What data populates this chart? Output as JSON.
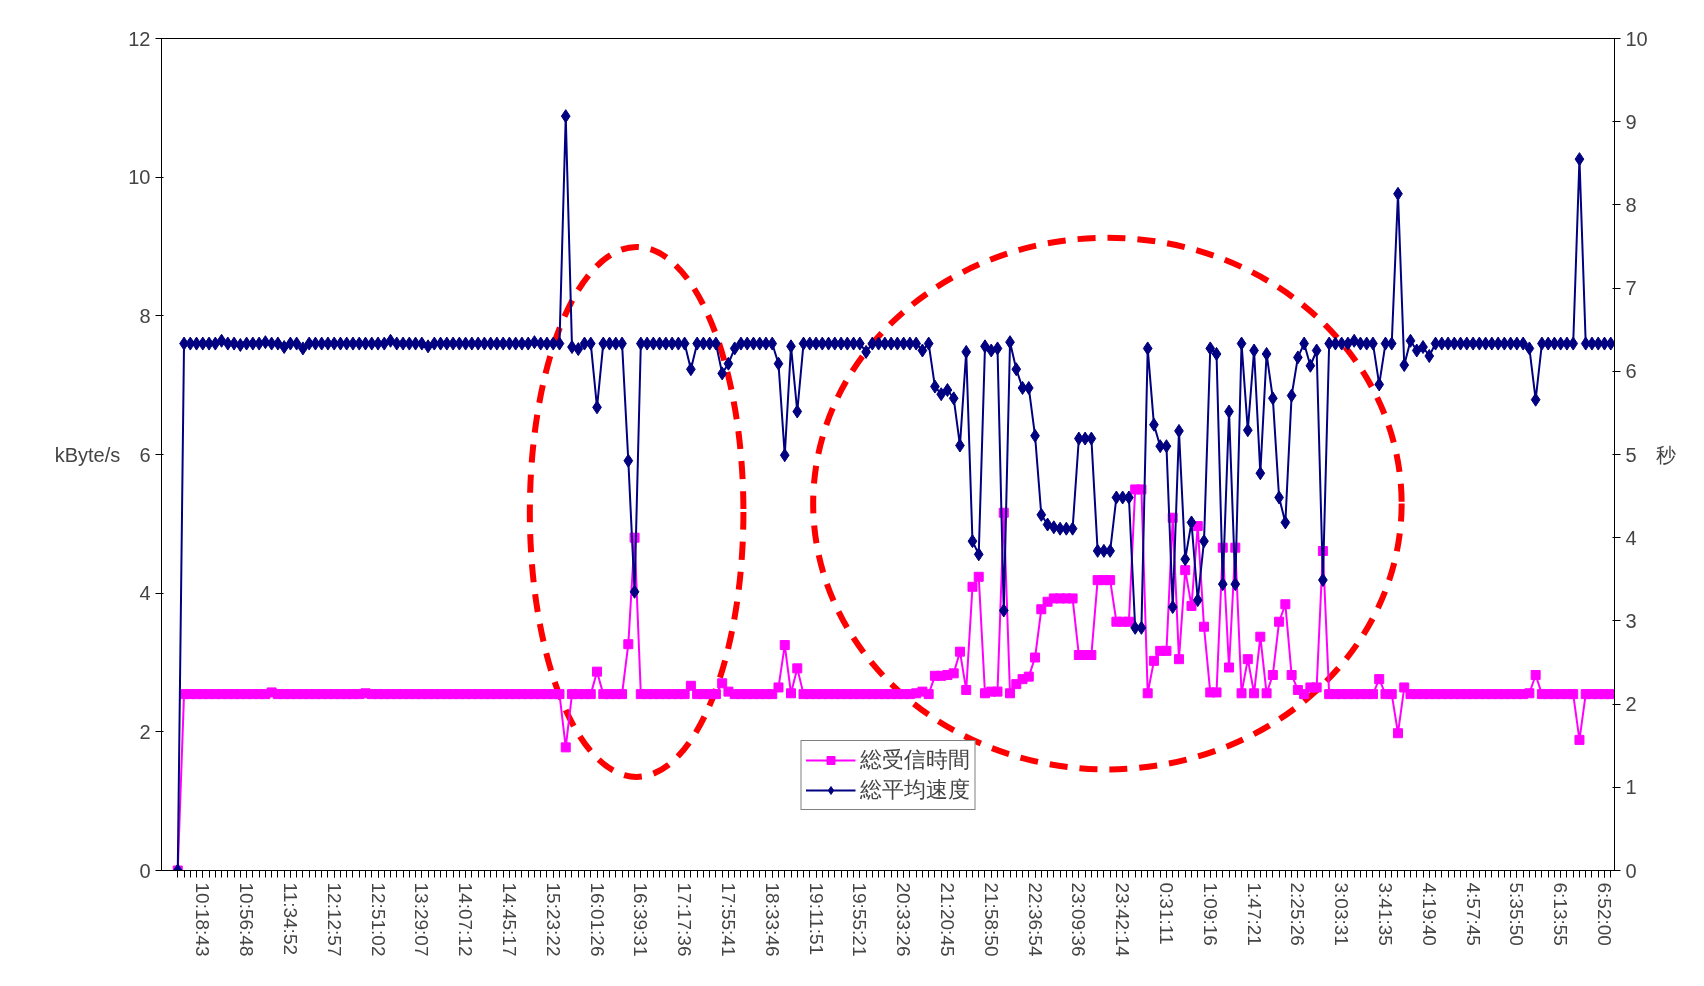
{
  "chart_data": {
    "type": "line",
    "ylabel": "kByte/s",
    "y2label": "秒",
    "categories": [
      null,
      null,
      null,
      null,
      "10:18:43",
      null,
      null,
      null,
      null,
      null,
      null,
      "10:56:48",
      null,
      null,
      null,
      null,
      null,
      null,
      "11:34:52",
      null,
      null,
      null,
      null,
      null,
      null,
      "12:12:57",
      null,
      null,
      null,
      null,
      null,
      null,
      "12:51:02",
      null,
      null,
      null,
      null,
      null,
      null,
      "13:29:07",
      null,
      null,
      null,
      null,
      null,
      null,
      "14:07:12",
      null,
      null,
      null,
      null,
      null,
      null,
      "14:45:17",
      null,
      null,
      null,
      null,
      null,
      null,
      "15:23:22",
      null,
      null,
      null,
      null,
      null,
      null,
      "16:01:26",
      null,
      null,
      null,
      null,
      null,
      null,
      "16:39:31",
      null,
      null,
      null,
      null,
      null,
      null,
      "17:17:36",
      null,
      null,
      null,
      null,
      null,
      null,
      "17:55:41",
      null,
      null,
      null,
      null,
      null,
      null,
      "18:33:46",
      null,
      null,
      null,
      null,
      null,
      null,
      "19:11:51",
      null,
      null,
      null,
      null,
      null,
      null,
      "19:55:21",
      null,
      null,
      null,
      null,
      null,
      null,
      "20:33:26",
      null,
      null,
      null,
      null,
      null,
      null,
      "21:20:45",
      null,
      null,
      null,
      null,
      null,
      null,
      "21:58:50",
      null,
      null,
      null,
      null,
      null,
      null,
      "22:36:54",
      null,
      null,
      null,
      null,
      null,
      null,
      "23:09:36",
      null,
      null,
      null,
      null,
      null,
      null,
      "23:42:14",
      null,
      null,
      null,
      null,
      null,
      null,
      "0:31:11",
      null,
      null,
      null,
      null,
      null,
      null,
      "1:09:16",
      null,
      null,
      null,
      null,
      null,
      null,
      "1:47:21",
      null,
      null,
      null,
      null,
      null,
      null,
      "2:25:26",
      null,
      null,
      null,
      null,
      null,
      null,
      "3:03:31",
      null,
      null,
      null,
      null,
      null,
      null,
      "3:41:35",
      null,
      null,
      null,
      null,
      null,
      null,
      "4:19:40",
      null,
      null,
      null,
      null,
      null,
      null,
      "4:57:45",
      null,
      null,
      null,
      null,
      null,
      null,
      "5:35:50",
      null,
      null,
      null,
      null,
      null,
      null,
      "6:13:55",
      null,
      null,
      null,
      null,
      null,
      null,
      "6:52:00",
      null
    ],
    "ylim": [
      0,
      12
    ],
    "y2lim": [
      0,
      10
    ],
    "yticks": [
      0,
      2,
      4,
      6,
      8,
      10,
      12
    ],
    "y2ticks": [
      0,
      1,
      2,
      3,
      4,
      5,
      6,
      7,
      8,
      9,
      10
    ],
    "grid": false,
    "legend": "bottom",
    "series": [
      {
        "name": "総受信時間",
        "color": "#ff00ff",
        "marker": "square",
        "axis": "y2",
        "values": [
          0,
          2.12,
          2.12,
          2.12,
          2.12,
          2.12,
          2.12,
          2.12,
          2.12,
          2.12,
          2.12,
          2.12,
          2.12,
          2.12,
          2.12,
          2.14,
          2.12,
          2.12,
          2.12,
          2.12,
          2.12,
          2.12,
          2.12,
          2.12,
          2.12,
          2.12,
          2.12,
          2.12,
          2.12,
          2.12,
          2.13,
          2.12,
          2.12,
          2.12,
          2.12,
          2.12,
          2.12,
          2.12,
          2.12,
          2.12,
          2.12,
          2.12,
          2.12,
          2.12,
          2.12,
          2.12,
          2.12,
          2.12,
          2.12,
          2.12,
          2.12,
          2.12,
          2.12,
          2.12,
          2.12,
          2.12,
          2.12,
          2.12,
          2.12,
          2.12,
          2.12,
          2.12,
          1.48,
          2.12,
          2.12,
          2.12,
          2.12,
          2.39,
          2.12,
          2.12,
          2.12,
          2.12,
          2.72,
          4.0,
          2.12,
          2.12,
          2.12,
          2.12,
          2.12,
          2.12,
          2.12,
          2.12,
          2.22,
          2.12,
          2.12,
          2.12,
          2.12,
          2.25,
          2.15,
          2.12,
          2.12,
          2.12,
          2.12,
          2.12,
          2.12,
          2.12,
          2.2,
          2.71,
          2.13,
          2.43,
          2.12,
          2.12,
          2.12,
          2.12,
          2.12,
          2.12,
          2.12,
          2.12,
          2.12,
          2.12,
          2.12,
          2.12,
          2.12,
          2.12,
          2.12,
          2.12,
          2.12,
          2.12,
          2.13,
          2.15,
          2.12,
          2.34,
          2.34,
          2.35,
          2.37,
          2.63,
          2.17,
          3.41,
          3.53,
          2.13,
          2.15,
          2.15,
          4.3,
          2.13,
          2.24,
          2.3,
          2.33,
          2.56,
          3.14,
          3.23,
          3.27,
          3.27,
          3.27,
          3.27,
          2.59,
          2.59,
          2.59,
          3.49,
          3.49,
          3.49,
          2.99,
          2.99,
          2.99,
          4.58,
          4.58,
          2.13,
          2.52,
          2.64,
          2.64,
          4.24,
          2.54,
          3.61,
          3.18,
          4.14,
          2.93,
          2.14,
          2.14,
          3.88,
          2.44,
          3.88,
          2.13,
          2.54,
          2.13,
          2.81,
          2.13,
          2.35,
          2.99,
          3.2,
          2.35,
          2.17,
          2.12,
          2.2,
          2.2,
          3.84,
          2.12,
          2.12,
          2.12,
          2.12,
          2.12,
          2.12,
          2.12,
          2.12,
          2.3,
          2.12,
          2.12,
          1.65,
          2.2,
          2.12,
          2.12,
          2.12,
          2.12,
          2.12,
          2.12,
          2.12,
          2.12,
          2.12,
          2.12,
          2.12,
          2.12,
          2.12,
          2.12,
          2.12,
          2.12,
          2.12,
          2.12,
          2.12,
          2.13,
          2.35,
          2.12,
          2.12,
          2.12,
          2.12,
          2.12,
          2.12,
          1.57,
          2.12,
          2.12,
          2.12,
          2.12,
          2.12
        ]
      },
      {
        "name": "総平均速度",
        "color": "#000080",
        "marker": "diamond",
        "values": [
          0,
          7.6,
          7.6,
          7.6,
          7.6,
          7.6,
          7.6,
          7.64,
          7.6,
          7.6,
          7.58,
          7.6,
          7.6,
          7.6,
          7.62,
          7.6,
          7.6,
          7.55,
          7.6,
          7.6,
          7.53,
          7.6,
          7.6,
          7.6,
          7.6,
          7.6,
          7.6,
          7.6,
          7.6,
          7.6,
          7.6,
          7.6,
          7.6,
          7.6,
          7.64,
          7.6,
          7.6,
          7.6,
          7.6,
          7.6,
          7.56,
          7.6,
          7.6,
          7.6,
          7.6,
          7.6,
          7.6,
          7.6,
          7.6,
          7.6,
          7.6,
          7.6,
          7.6,
          7.6,
          7.6,
          7.6,
          7.6,
          7.62,
          7.6,
          7.6,
          7.6,
          7.6,
          10.88,
          7.55,
          7.52,
          7.6,
          7.6,
          6.68,
          7.6,
          7.6,
          7.6,
          7.6,
          5.91,
          4.02,
          7.6,
          7.6,
          7.6,
          7.6,
          7.6,
          7.6,
          7.6,
          7.6,
          7.23,
          7.6,
          7.6,
          7.6,
          7.6,
          7.17,
          7.31,
          7.53,
          7.6,
          7.6,
          7.6,
          7.6,
          7.6,
          7.6,
          7.31,
          5.99,
          7.56,
          6.62,
          7.6,
          7.6,
          7.6,
          7.6,
          7.6,
          7.6,
          7.6,
          7.6,
          7.6,
          7.6,
          7.48,
          7.6,
          7.6,
          7.6,
          7.6,
          7.6,
          7.6,
          7.6,
          7.6,
          7.5,
          7.6,
          6.98,
          6.87,
          6.93,
          6.81,
          6.13,
          7.48,
          4.75,
          4.56,
          7.56,
          7.5,
          7.53,
          3.75,
          7.62,
          7.23,
          6.96,
          6.96,
          6.27,
          5.13,
          4.99,
          4.95,
          4.93,
          4.93,
          4.93,
          6.23,
          6.23,
          6.23,
          4.61,
          4.61,
          4.61,
          5.38,
          5.38,
          5.38,
          3.5,
          3.5,
          7.53,
          6.43,
          6.12,
          6.12,
          3.8,
          6.34,
          4.49,
          5.02,
          3.9,
          4.75,
          7.53,
          7.45,
          4.13,
          6.62,
          4.13,
          7.6,
          6.35,
          7.5,
          5.73,
          7.45,
          6.81,
          5.38,
          5.02,
          6.85,
          7.4,
          7.6,
          7.28,
          7.5,
          4.19,
          7.6,
          7.6,
          7.6,
          7.6,
          7.64,
          7.6,
          7.6,
          7.6,
          7.01,
          7.6,
          7.6,
          9.76,
          7.29,
          7.64,
          7.5,
          7.55,
          7.42,
          7.6,
          7.6,
          7.6,
          7.6,
          7.6,
          7.6,
          7.6,
          7.6,
          7.6,
          7.6,
          7.6,
          7.6,
          7.6,
          7.6,
          7.6,
          7.53,
          6.79,
          7.6,
          7.6,
          7.6,
          7.6,
          7.6,
          7.6,
          10.26,
          7.6,
          7.6,
          7.6,
          7.6,
          7.6
        ]
      }
    ]
  }
}
